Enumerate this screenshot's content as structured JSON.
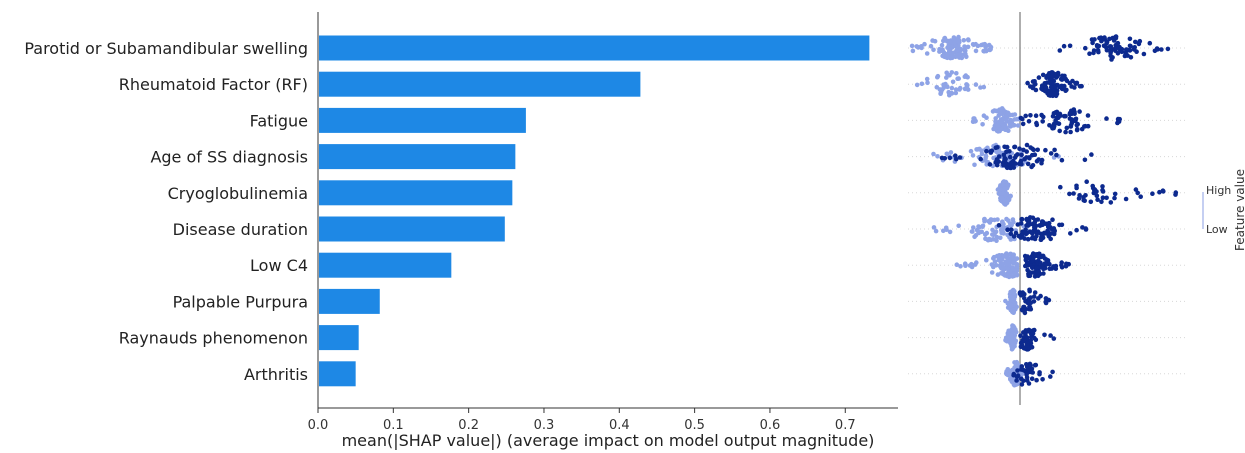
{
  "chart_data": [
    {
      "type": "bar",
      "orientation": "horizontal",
      "xlabel": "mean(|SHAP value|) (average impact on model output magnitude)",
      "xlim": [
        0,
        0.77
      ],
      "xticks": [
        0.0,
        0.1,
        0.2,
        0.3,
        0.4,
        0.5,
        0.6,
        0.7
      ],
      "xtick_labels": [
        "0.0",
        "0.1",
        "0.2",
        "0.3",
        "0.4",
        "0.5",
        "0.6",
        "0.7"
      ],
      "grid": false,
      "bar_color": "#1e88e5",
      "categories": [
        "Parotid or Subamandibular swelling",
        "Rheumatoid Factor (RF)",
        "Fatigue",
        "Age of SS diagnosis",
        "Cryoglobulinemia",
        "Disease duration",
        "Low C4",
        "Palpable Purpura",
        "Raynauds phenomenon",
        "Arthritis"
      ],
      "values": [
        0.732,
        0.428,
        0.276,
        0.262,
        0.258,
        0.248,
        0.177,
        0.082,
        0.054,
        0.05
      ]
    },
    {
      "type": "scatter",
      "subtype": "beeswarm",
      "colors": {
        "low": "#8ea3e6",
        "high": "#0d2a8f",
        "baseline": "#999999"
      },
      "legend": {
        "title": "Feature value",
        "high_label": "High",
        "low_label": "Low",
        "placement": "right"
      },
      "rows": [
        {
          "feature": "Parotid or Subamandibular swelling",
          "low": {
            "min": -0.72,
            "max": -0.18,
            "center": -0.45,
            "n": 110
          },
          "high": {
            "min": 0.25,
            "max": 1.0,
            "center": 0.62,
            "n": 80
          }
        },
        {
          "feature": "Rheumatoid Factor (RF)",
          "low": {
            "min": -0.72,
            "max": -0.22,
            "center": -0.45,
            "n": 45
          },
          "high": {
            "min": 0.05,
            "max": 0.42,
            "center": 0.22,
            "n": 100
          }
        },
        {
          "feature": "Fatigue",
          "low": {
            "min": -0.32,
            "max": 0.0,
            "center": -0.12,
            "n": 90
          },
          "high": {
            "min": 0.0,
            "max": 0.72,
            "center": 0.3,
            "n": 70
          }
        },
        {
          "feature": "Age of SS diagnosis",
          "low": {
            "min": -0.58,
            "max": 0.28,
            "center": -0.15,
            "n": 80
          },
          "high": {
            "min": -0.52,
            "max": 0.5,
            "center": 0.0,
            "n": 80
          }
        },
        {
          "feature": "Cryoglobulinemia",
          "low": {
            "min": -0.15,
            "max": -0.05,
            "center": -0.1,
            "n": 100
          },
          "high": {
            "min": 0.25,
            "max": 1.05,
            "center": 0.5,
            "n": 40
          }
        },
        {
          "feature": "Disease duration",
          "low": {
            "min": -0.68,
            "max": 0.1,
            "center": -0.15,
            "n": 80
          },
          "high": {
            "min": -0.2,
            "max": 0.48,
            "center": 0.1,
            "n": 90
          }
        },
        {
          "feature": "Low C4",
          "low": {
            "min": -0.43,
            "max": -0.02,
            "center": -0.08,
            "n": 100
          },
          "high": {
            "min": 0.0,
            "max": 0.35,
            "center": 0.1,
            "n": 90
          }
        },
        {
          "feature": "Palpable Purpura",
          "low": {
            "min": -0.1,
            "max": -0.02,
            "center": -0.05,
            "n": 90
          },
          "high": {
            "min": 0.0,
            "max": 0.25,
            "center": 0.05,
            "n": 40
          }
        },
        {
          "feature": "Raynauds phenomenon",
          "low": {
            "min": -0.1,
            "max": -0.02,
            "center": -0.05,
            "n": 70
          },
          "high": {
            "min": -0.02,
            "max": 0.24,
            "center": 0.05,
            "n": 50
          }
        },
        {
          "feature": "Arthritis",
          "low": {
            "min": -0.1,
            "max": 0.02,
            "center": -0.03,
            "n": 80
          },
          "high": {
            "min": -0.05,
            "max": 0.25,
            "center": 0.05,
            "n": 40
          }
        }
      ]
    }
  ]
}
